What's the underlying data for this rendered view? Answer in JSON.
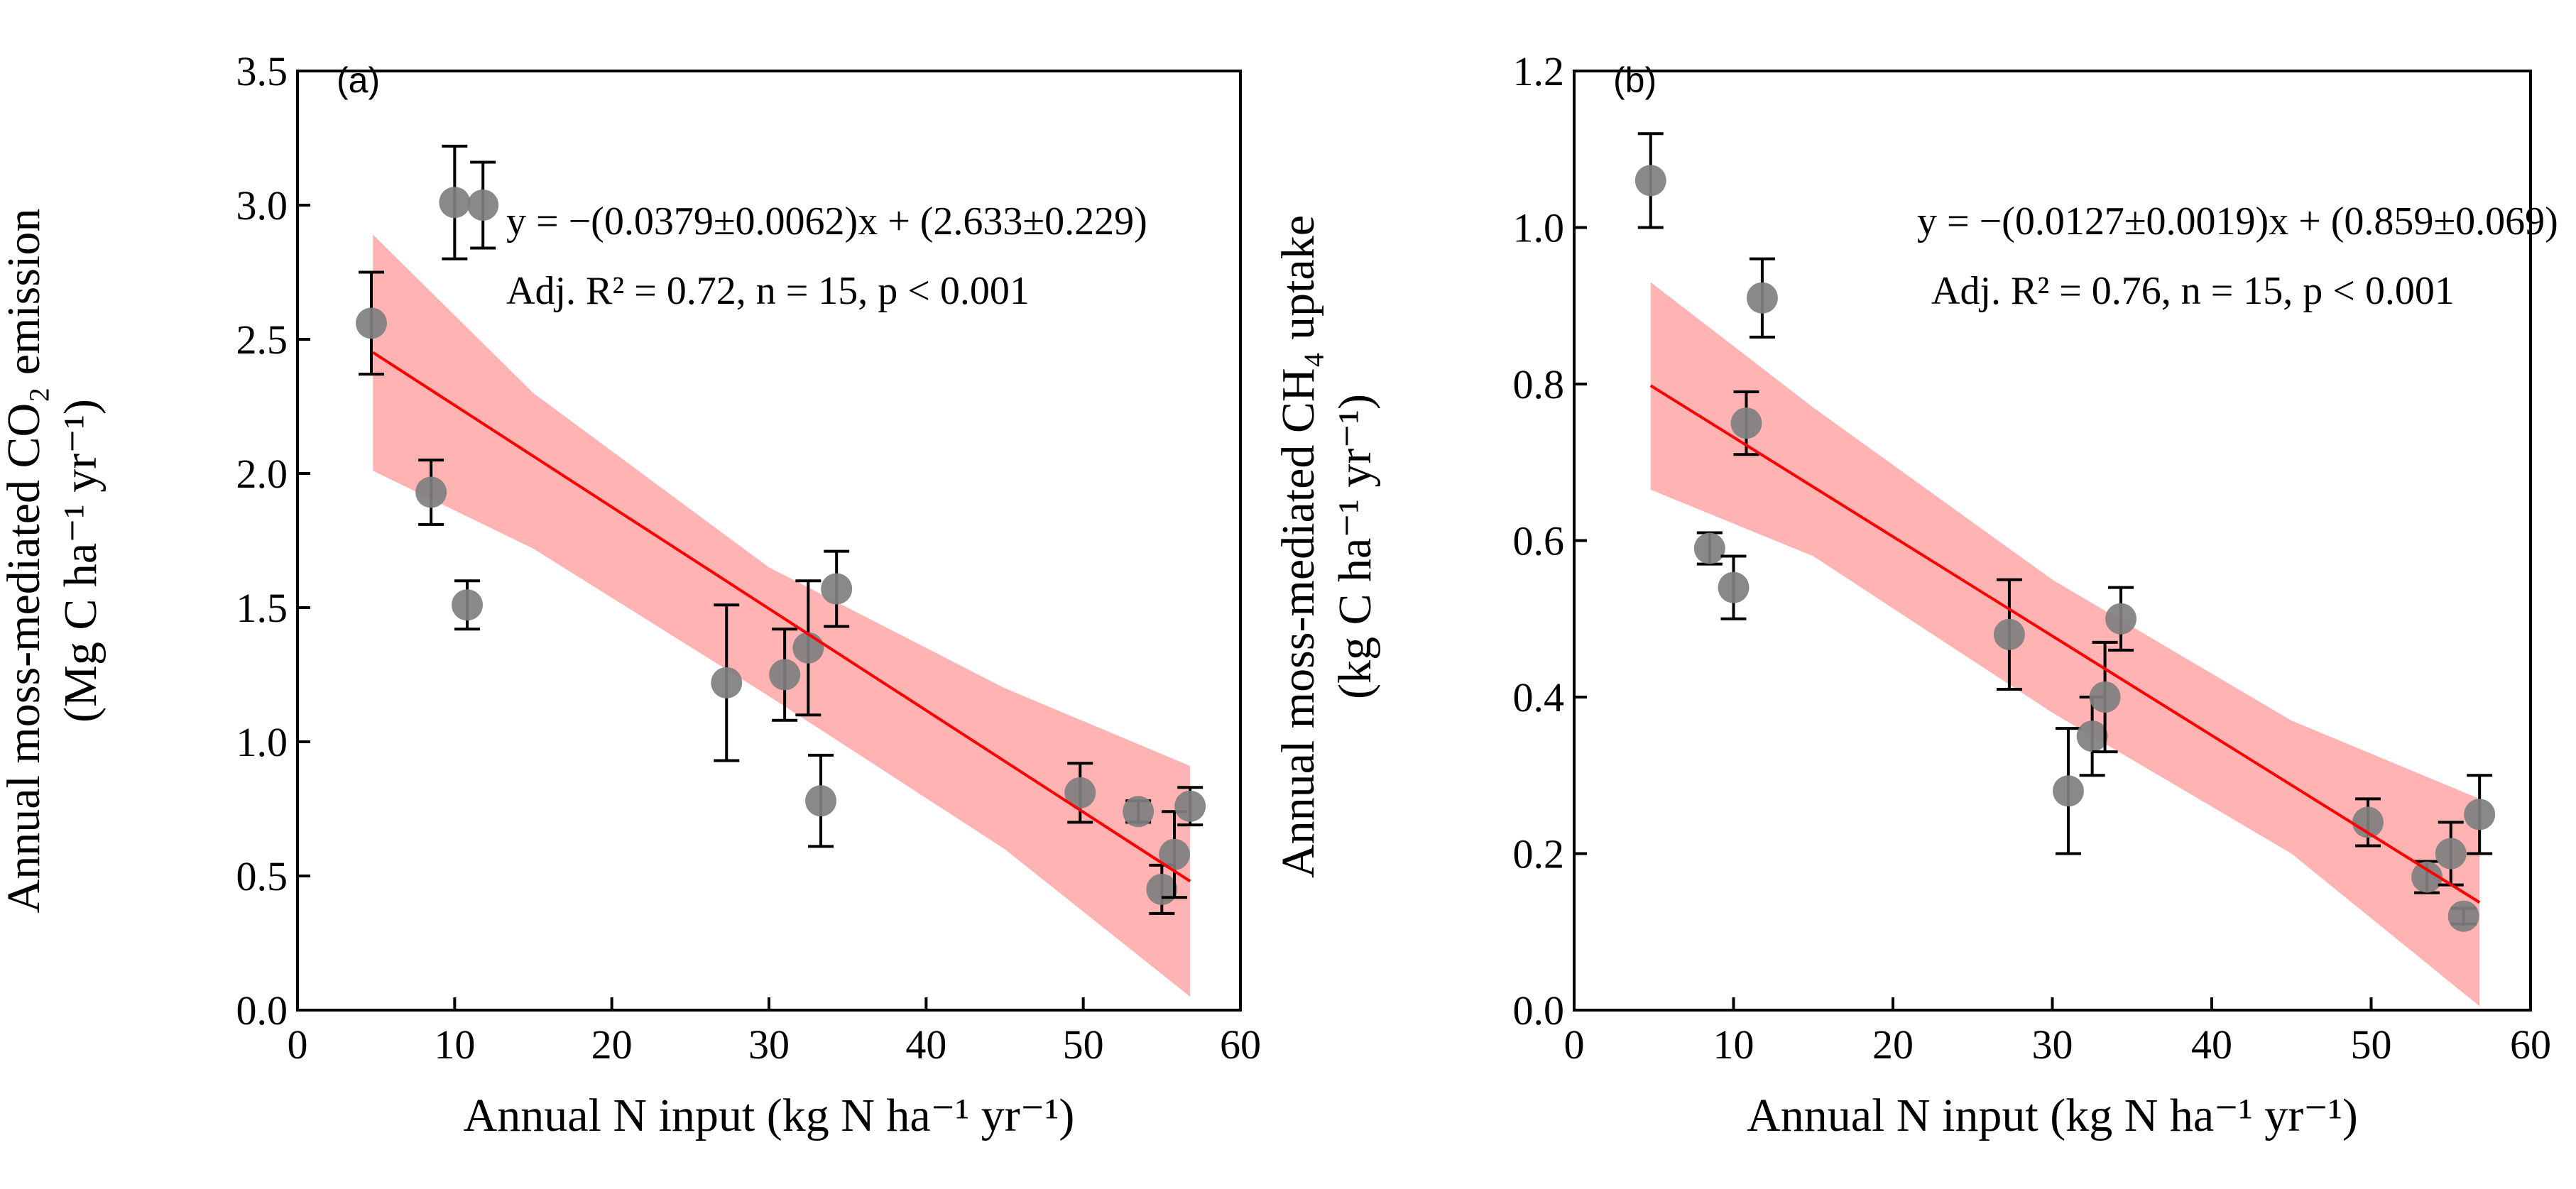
{
  "chart_data": [
    {
      "type": "scatter",
      "panel_label": "(a)",
      "xlabel": "Annual N input (kg N ha⁻¹ yr⁻¹)",
      "ylabel_line1": "Annual moss-mediated CO₂ emission",
      "ylabel_line2": "(Mg C ha⁻¹ yr⁻¹)",
      "xlim": [
        0,
        60
      ],
      "ylim": [
        0,
        3.5
      ],
      "xticks": [
        "0",
        "10",
        "20",
        "30",
        "40",
        "50",
        "60"
      ],
      "yticks": [
        "0.0",
        "0.5",
        "1.0",
        "1.5",
        "2.0",
        "2.5",
        "3.0",
        "3.5"
      ],
      "equation": "y = −(0.0379±0.0062)x + (2.633±0.229)",
      "stats": "Adj. R² = 0.72, n = 15, p < 0.001",
      "fit": {
        "slope": -0.0379,
        "intercept": 2.633,
        "x_range": [
          4.8,
          56.8
        ]
      },
      "band": {
        "x": [
          4.8,
          15,
          30,
          45,
          56.8
        ],
        "upper": [
          2.89,
          2.3,
          1.65,
          1.2,
          0.91
        ],
        "lower": [
          2.01,
          1.72,
          1.17,
          0.6,
          0.05
        ]
      },
      "points": [
        {
          "x": 4.7,
          "y": 2.56,
          "err": 0.19
        },
        {
          "x": 8.5,
          "y": 1.93,
          "err": 0.12
        },
        {
          "x": 10,
          "y": 3.01,
          "err": 0.21
        },
        {
          "x": 10.8,
          "y": 1.51,
          "err": 0.09
        },
        {
          "x": 11.8,
          "y": 3.0,
          "err": 0.16
        },
        {
          "x": 27.3,
          "y": 1.22,
          "err": 0.29
        },
        {
          "x": 31,
          "y": 1.25,
          "err": 0.17
        },
        {
          "x": 32.5,
          "y": 1.35,
          "err": 0.25
        },
        {
          "x": 33.3,
          "y": 0.78,
          "err": 0.17
        },
        {
          "x": 34.3,
          "y": 1.57,
          "err": 0.14
        },
        {
          "x": 49.8,
          "y": 0.81,
          "err": 0.11
        },
        {
          "x": 53.5,
          "y": 0.74,
          "err": 0.04
        },
        {
          "x": 55,
          "y": 0.45,
          "err": 0.09
        },
        {
          "x": 55.8,
          "y": 0.58,
          "err": 0.16
        },
        {
          "x": 56.8,
          "y": 0.76,
          "err": 0.07
        }
      ]
    },
    {
      "type": "scatter",
      "panel_label": "(b)",
      "xlabel": "Annual N input (kg N ha⁻¹ yr⁻¹)",
      "ylabel_line1": "Annual moss-mediated CH₄ uptake",
      "ylabel_line2": "(kg C ha⁻¹ yr⁻¹)",
      "xlim": [
        0,
        60
      ],
      "ylim": [
        0,
        1.2
      ],
      "xticks": [
        "0",
        "10",
        "20",
        "30",
        "40",
        "50",
        "60"
      ],
      "yticks": [
        "0.0",
        "0.2",
        "0.4",
        "0.6",
        "0.8",
        "1.0",
        "1.2"
      ],
      "equation": "y = −(0.0127±0.0019)x + (0.859±0.069)",
      "stats": "Adj. R² = 0.76, n = 15, p < 0.001",
      "fit": {
        "slope": -0.0127,
        "intercept": 0.859,
        "x_range": [
          4.8,
          56.8
        ]
      },
      "band": {
        "x": [
          4.8,
          15,
          30,
          45,
          56.8
        ],
        "upper": [
          0.93,
          0.77,
          0.55,
          0.37,
          0.27
        ],
        "lower": [
          0.665,
          0.58,
          0.38,
          0.2,
          0.005
        ]
      },
      "points": [
        {
          "x": 4.8,
          "y": 1.06,
          "err": 0.06
        },
        {
          "x": 8.5,
          "y": 0.59,
          "err": 0.02
        },
        {
          "x": 10,
          "y": 0.54,
          "err": 0.04
        },
        {
          "x": 10.8,
          "y": 0.75,
          "err": 0.04
        },
        {
          "x": 11.8,
          "y": 0.91,
          "err": 0.05
        },
        {
          "x": 27.3,
          "y": 0.48,
          "err": 0.07
        },
        {
          "x": 31,
          "y": 0.28,
          "err": 0.08
        },
        {
          "x": 32.5,
          "y": 0.35,
          "err": 0.05
        },
        {
          "x": 33.3,
          "y": 0.4,
          "err": 0.07
        },
        {
          "x": 34.3,
          "y": 0.5,
          "err": 0.04
        },
        {
          "x": 49.8,
          "y": 0.24,
          "err": 0.03
        },
        {
          "x": 53.5,
          "y": 0.17,
          "err": 0.02
        },
        {
          "x": 55,
          "y": 0.2,
          "err": 0.04
        },
        {
          "x": 55.8,
          "y": 0.12,
          "err": 0.01
        },
        {
          "x": 56.8,
          "y": 0.25,
          "err": 0.05
        }
      ]
    }
  ],
  "colors": {
    "band": "#ff9999",
    "line": "#ff0000",
    "point": "#7f7f7f"
  }
}
